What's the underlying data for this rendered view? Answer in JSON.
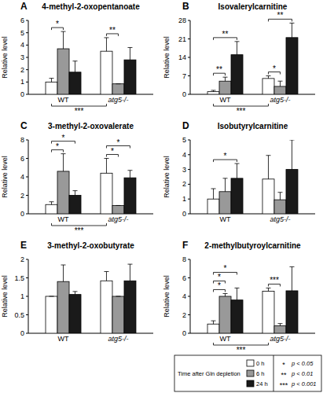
{
  "chart_data": [
    {
      "type": "bar",
      "panel": "A",
      "title": "4-methyl-2-oxopentanoate",
      "y_label": "Relative level",
      "categories": [
        "WT",
        "atg5-/-"
      ],
      "ylim": [
        0,
        6
      ],
      "yticks": [
        0,
        1,
        2,
        3,
        4,
        5,
        6
      ],
      "series": [
        {
          "name": "0 h",
          "color": "#ffffff",
          "values": [
            1.0,
            3.5
          ],
          "errors": [
            0.3,
            1.1
          ]
        },
        {
          "name": "6 h",
          "color": "#999999",
          "values": [
            3.7,
            0.85
          ],
          "errors": [
            1.4,
            0
          ]
        },
        {
          "name": "24 h",
          "color": "#1a1a1a",
          "values": [
            1.8,
            2.8
          ],
          "errors": [
            0.9,
            1.0
          ]
        }
      ],
      "annotations": [
        {
          "text": "*",
          "from": {
            "category": "WT",
            "series": "0 h"
          },
          "to": {
            "category": "WT",
            "series": "6 h"
          }
        },
        {
          "text": "**",
          "from": {
            "category": "atg5-/-",
            "series": "0 h"
          },
          "to": {
            "category": "atg5-/-",
            "series": "6 h"
          }
        },
        {
          "text": "***",
          "from": {
            "category": "WT",
            "series": "0 h"
          },
          "to": {
            "category": "atg5-/-",
            "series": "0 h"
          }
        }
      ]
    },
    {
      "type": "bar",
      "panel": "B",
      "title": "Isovalerylcarnitine",
      "y_label": "Relative level",
      "categories": [
        "WT",
        "atg5-/-"
      ],
      "ylim": [
        0,
        28
      ],
      "yticks": [
        0,
        7,
        14,
        21,
        28
      ],
      "series": [
        {
          "name": "0 h",
          "color": "#ffffff",
          "values": [
            1.0,
            6.0
          ],
          "errors": [
            0.5,
            1.0
          ]
        },
        {
          "name": "6 h",
          "color": "#999999",
          "values": [
            5.0,
            3.0
          ],
          "errors": [
            1.5,
            2.0
          ]
        },
        {
          "name": "24 h",
          "color": "#1a1a1a",
          "values": [
            15.0,
            21.5
          ],
          "errors": [
            5.0,
            5.5
          ]
        }
      ],
      "annotations": [
        {
          "text": "**",
          "from": {
            "category": "WT",
            "series": "0 h"
          },
          "to": {
            "category": "WT",
            "series": "6 h"
          }
        },
        {
          "text": "**",
          "from": {
            "category": "WT",
            "series": "0 h"
          },
          "to": {
            "category": "WT",
            "series": "24 h"
          }
        },
        {
          "text": "*",
          "from": {
            "category": "atg5-/-",
            "series": "0 h"
          },
          "to": {
            "category": "atg5-/-",
            "series": "6 h"
          }
        },
        {
          "text": "**",
          "from": {
            "category": "atg5-/-",
            "series": "0 h"
          },
          "to": {
            "category": "atg5-/-",
            "series": "24 h"
          }
        },
        {
          "text": "***",
          "from": {
            "category": "WT",
            "series": "0 h"
          },
          "to": {
            "category": "atg5-/-",
            "series": "0 h"
          }
        }
      ]
    },
    {
      "type": "bar",
      "panel": "C",
      "title": "3-methyl-2-oxovalerate",
      "y_label": "Relative level",
      "categories": [
        "WT",
        "atg5-/-"
      ],
      "ylim": [
        0,
        8
      ],
      "yticks": [
        0,
        2,
        4,
        6,
        8
      ],
      "series": [
        {
          "name": "0 h",
          "color": "#ffffff",
          "values": [
            1.0,
            4.4
          ],
          "errors": [
            0.3,
            1.6
          ]
        },
        {
          "name": "6 h",
          "color": "#999999",
          "values": [
            4.6,
            0.9
          ],
          "errors": [
            1.9,
            0
          ]
        },
        {
          "name": "24 h",
          "color": "#1a1a1a",
          "values": [
            2.0,
            3.9
          ],
          "errors": [
            0.5,
            0.8
          ]
        }
      ],
      "annotations": [
        {
          "text": "*",
          "from": {
            "category": "WT",
            "series": "0 h"
          },
          "to": {
            "category": "WT",
            "series": "6 h"
          }
        },
        {
          "text": "*",
          "from": {
            "category": "WT",
            "series": "0 h"
          },
          "to": {
            "category": "WT",
            "series": "24 h"
          }
        },
        {
          "text": "*",
          "from": {
            "category": "atg5-/-",
            "series": "0 h"
          },
          "to": {
            "category": "atg5-/-",
            "series": "6 h"
          }
        },
        {
          "text": "*",
          "from": {
            "category": "atg5-/-",
            "series": "0 h"
          },
          "to": {
            "category": "atg5-/-",
            "series": "24 h"
          }
        },
        {
          "text": "***",
          "from": {
            "category": "WT",
            "series": "0 h"
          },
          "to": {
            "category": "atg5-/-",
            "series": "0 h"
          }
        }
      ]
    },
    {
      "type": "bar",
      "panel": "D",
      "title": "Isobutyrylcarnitine",
      "y_label": "Relative level",
      "categories": [
        "WT",
        "atg5-/-"
      ],
      "ylim": [
        0,
        5
      ],
      "yticks": [
        0,
        1,
        2,
        3,
        4,
        5
      ],
      "series": [
        {
          "name": "0 h",
          "color": "#ffffff",
          "values": [
            1.0,
            2.35
          ],
          "errors": [
            0.7,
            1.6
          ]
        },
        {
          "name": "6 h",
          "color": "#999999",
          "values": [
            1.5,
            0.95
          ],
          "errors": [
            0.9,
            0.5
          ]
        },
        {
          "name": "24 h",
          "color": "#1a1a1a",
          "values": [
            2.4,
            3.0
          ],
          "errors": [
            1.0,
            2.0
          ]
        }
      ],
      "annotations": [
        {
          "text": "*",
          "from": {
            "category": "WT",
            "series": "0 h"
          },
          "to": {
            "category": "WT",
            "series": "24 h"
          }
        }
      ]
    },
    {
      "type": "bar",
      "panel": "E",
      "title": "3-methyl-2-oxobutyrate",
      "y_label": "Relative level",
      "categories": [
        "WT",
        "atg5-/-"
      ],
      "ylim": [
        0,
        2
      ],
      "yticks": [
        0,
        0.5,
        1,
        1.5,
        2
      ],
      "series": [
        {
          "name": "0 h",
          "color": "#ffffff",
          "values": [
            1.0,
            1.42
          ],
          "errors": [
            0,
            0.25
          ]
        },
        {
          "name": "6 h",
          "color": "#999999",
          "values": [
            1.4,
            1.0
          ],
          "errors": [
            0.45,
            0
          ]
        },
        {
          "name": "24 h",
          "color": "#1a1a1a",
          "values": [
            1.05,
            1.42
          ],
          "errors": [
            0.08,
            0.45
          ]
        }
      ],
      "annotations": []
    },
    {
      "type": "bar",
      "panel": "F",
      "title": "2-methylbutyroylcarnitine",
      "y_label": "Relative level",
      "categories": [
        "WT",
        "atg5-/-"
      ],
      "ylim": [
        0,
        8
      ],
      "yticks": [
        0,
        2,
        4,
        6,
        8
      ],
      "series": [
        {
          "name": "0 h",
          "color": "#ffffff",
          "values": [
            1.0,
            4.55
          ],
          "errors": [
            0.35,
            0.35
          ]
        },
        {
          "name": "6 h",
          "color": "#999999",
          "values": [
            4.0,
            0.8
          ],
          "errors": [
            0.3,
            0.25
          ]
        },
        {
          "name": "24 h",
          "color": "#1a1a1a",
          "values": [
            3.6,
            4.6
          ],
          "errors": [
            1.3,
            2.6
          ]
        }
      ],
      "annotations": [
        {
          "text": "*",
          "from": {
            "category": "WT",
            "series": "0 h"
          },
          "to": {
            "category": "WT",
            "series": "6 h"
          }
        },
        {
          "text": "*",
          "from": {
            "category": "WT",
            "series": "0 h"
          },
          "to": {
            "category": "WT",
            "series": "6 h"
          }
        },
        {
          "text": "*",
          "from": {
            "category": "WT",
            "series": "0 h"
          },
          "to": {
            "category": "WT",
            "series": "24 h"
          }
        },
        {
          "text": "***",
          "from": {
            "category": "atg5-/-",
            "series": "0 h"
          },
          "to": {
            "category": "atg5-/-",
            "series": "6 h"
          }
        },
        {
          "text": "***",
          "from": {
            "category": "WT",
            "series": "0 h"
          },
          "to": {
            "category": "atg5-/-",
            "series": "0 h"
          }
        }
      ]
    }
  ],
  "key": {
    "title": "Time after Gln depletion",
    "significance": [
      {
        "symbol": "*",
        "label": "p < 0.05"
      },
      {
        "symbol": "**",
        "label": "p < 0.01"
      },
      {
        "symbol": "***",
        "label": "p < 0.001"
      }
    ]
  }
}
